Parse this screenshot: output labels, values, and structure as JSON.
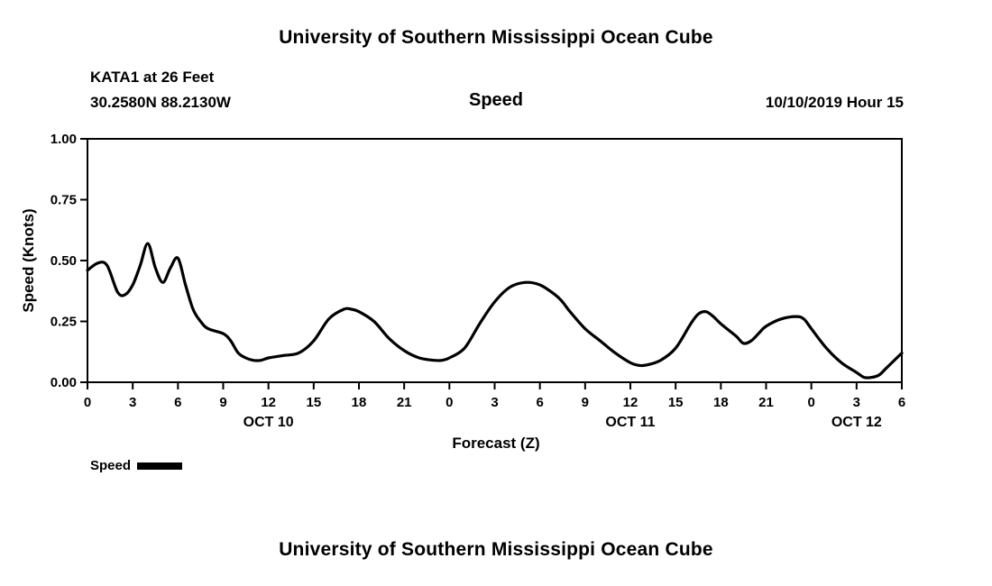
{
  "page": {
    "top_title": "University of Southern Mississippi Ocean Cube",
    "bottom_title": "University of Southern Mississippi Ocean Cube"
  },
  "header": {
    "station": "KATA1 at 26 Feet",
    "coordinates": "30.2580N 88.2130W",
    "plot_title": "Speed",
    "datetime": "10/10/2019 Hour 15"
  },
  "legend": {
    "label": "Speed",
    "swatch_color": "#000000"
  },
  "chart_data": {
    "type": "line",
    "title": "Speed",
    "xlabel": "Forecast (Z)",
    "ylabel": "Speed (Knots)",
    "grid": false,
    "frame": true,
    "legend_position": "below-left",
    "line_color": "#000000",
    "line_width": 3.2,
    "axis_color": "#000000",
    "ylim": [
      0.0,
      1.0
    ],
    "yticks": [
      0.0,
      0.25,
      0.5,
      0.75,
      1.0
    ],
    "ytick_labels": [
      "0.00",
      "0.25",
      "0.50",
      "0.75",
      "1.00"
    ],
    "xlim": [
      0,
      54
    ],
    "xticks": [
      0,
      3,
      6,
      9,
      12,
      15,
      18,
      21,
      24,
      27,
      30,
      33,
      36,
      39,
      42,
      45,
      48,
      51,
      54
    ],
    "xtick_labels": [
      "0",
      "3",
      "6",
      "9",
      "12",
      "15",
      "18",
      "21",
      "0",
      "3",
      "6",
      "9",
      "12",
      "15",
      "18",
      "21",
      "0",
      "3",
      "6"
    ],
    "day_labels": [
      {
        "label": "OCT 10",
        "hour": 12
      },
      {
        "label": "OCT 11",
        "hour": 36
      },
      {
        "label": "OCT 12",
        "hour": 51
      }
    ],
    "series": [
      {
        "name": "Speed",
        "units": "Knots",
        "x": [
          0,
          0.7,
          1.3,
          2,
          2.5,
          3,
          3.5,
          4,
          4.5,
          5,
          5.5,
          6,
          6.5,
          7,
          7.5,
          8,
          9,
          9.5,
          10,
          10.5,
          11,
          11.5,
          12,
          13,
          14,
          15,
          16,
          17,
          17.5,
          18,
          19,
          20,
          21,
          22,
          23,
          23.5,
          24,
          25,
          26,
          27,
          28,
          29,
          30,
          31,
          31.5,
          32,
          33,
          34,
          35,
          36,
          36.5,
          37,
          38,
          39,
          40,
          40.5,
          41,
          41.5,
          42,
          43,
          43.5,
          44,
          44.5,
          45,
          46,
          47,
          47.5,
          48,
          49,
          50,
          51,
          51.5,
          52,
          52.5,
          53,
          54
        ],
        "y": [
          0.46,
          0.49,
          0.48,
          0.37,
          0.36,
          0.4,
          0.48,
          0.57,
          0.47,
          0.41,
          0.47,
          0.51,
          0.4,
          0.3,
          0.25,
          0.22,
          0.2,
          0.17,
          0.12,
          0.1,
          0.09,
          0.09,
          0.1,
          0.11,
          0.12,
          0.17,
          0.26,
          0.3,
          0.3,
          0.29,
          0.25,
          0.18,
          0.13,
          0.1,
          0.09,
          0.09,
          0.1,
          0.14,
          0.24,
          0.33,
          0.39,
          0.41,
          0.4,
          0.36,
          0.33,
          0.29,
          0.22,
          0.17,
          0.12,
          0.08,
          0.07,
          0.07,
          0.09,
          0.14,
          0.24,
          0.28,
          0.29,
          0.27,
          0.24,
          0.19,
          0.16,
          0.17,
          0.2,
          0.23,
          0.26,
          0.27,
          0.26,
          0.22,
          0.14,
          0.08,
          0.04,
          0.02,
          0.02,
          0.03,
          0.06,
          0.12
        ]
      }
    ]
  }
}
